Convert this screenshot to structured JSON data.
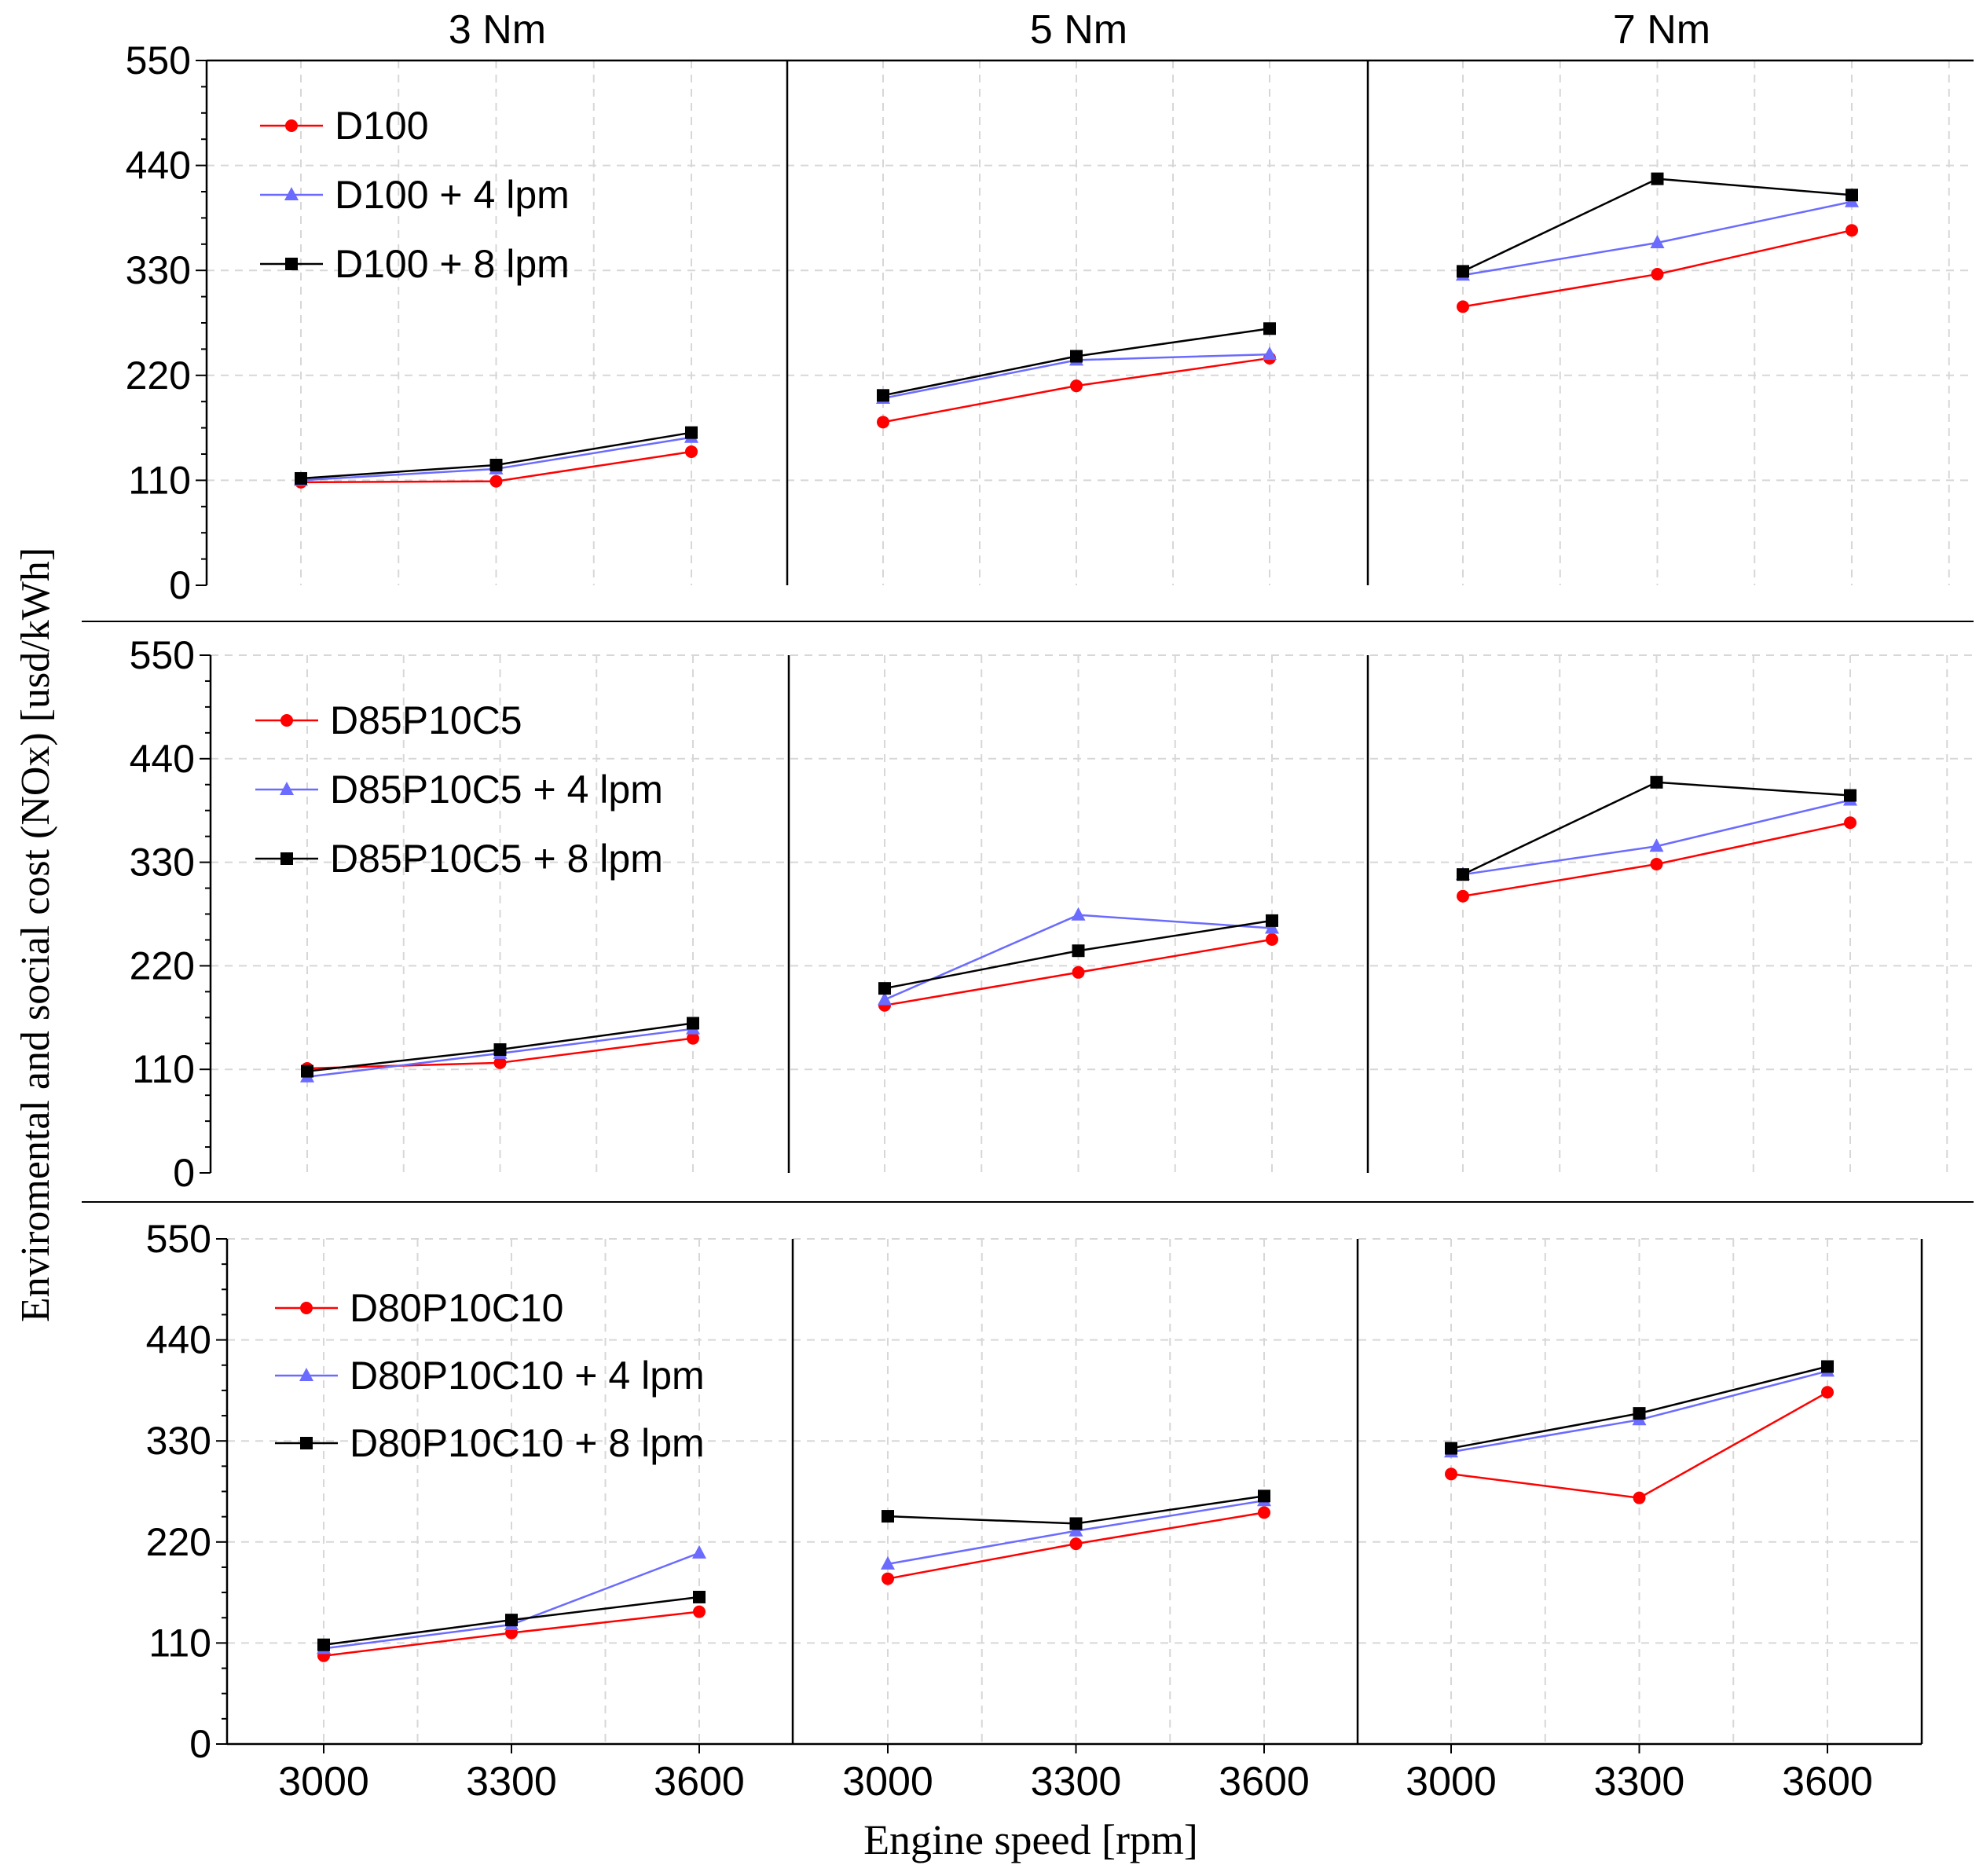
{
  "chart_data": {
    "type": "line",
    "ylabel": "Enviromental and social cost (NOx) [usd/kWh]",
    "xlabel": "Engine speed [rpm]",
    "column_titles": [
      "3 Nm",
      "5 Nm",
      "7 Nm"
    ],
    "x_ticks": [
      "3000",
      "3300",
      "3600"
    ],
    "y_ticks": [
      "0",
      "110",
      "220",
      "330",
      "440",
      "550"
    ],
    "ylim": [
      0,
      550
    ],
    "grid": true,
    "colors": {
      "base": "#ff0000",
      "lpm4": "#6b6bff",
      "lpm8": "#000000"
    },
    "rows": [
      {
        "legend": [
          "D100",
          "D100 + 4 lpm",
          "D100 + 8 lpm"
        ],
        "panels": [
          {
            "torque": "3 Nm",
            "series": [
              {
                "name": "D100",
                "x": [
                  3000,
                  3300,
                  3600
                ],
                "values": [
                  108,
                  109,
                  140
                ]
              },
              {
                "name": "D100 + 4 lpm",
                "x": [
                  3000,
                  3300,
                  3600
                ],
                "values": [
                  110,
                  122,
                  155
                ]
              },
              {
                "name": "D100 + 8 lpm",
                "x": [
                  3000,
                  3300,
                  3600
                ],
                "values": [
                  112,
                  126,
                  160
                ]
              }
            ]
          },
          {
            "torque": "5 Nm",
            "series": [
              {
                "name": "D100",
                "x": [
                  3000,
                  3300,
                  3600
                ],
                "values": [
                  171,
                  209,
                  238
                ]
              },
              {
                "name": "D100 + 4 lpm",
                "x": [
                  3000,
                  3300,
                  3600
                ],
                "values": [
                  196,
                  236,
                  242
                ]
              },
              {
                "name": "D100 + 8 lpm",
                "x": [
                  3000,
                  3300,
                  3600
                ],
                "values": [
                  199,
                  240,
                  269
                ]
              }
            ]
          },
          {
            "torque": "7 Nm",
            "series": [
              {
                "name": "D100",
                "x": [
                  3000,
                  3300,
                  3600
                ],
                "values": [
                  292,
                  326,
                  372
                ]
              },
              {
                "name": "D100 + 4 lpm",
                "x": [
                  3000,
                  3300,
                  3600
                ],
                "values": [
                  325,
                  359,
                  402
                ]
              },
              {
                "name": "D100 + 8 lpm",
                "x": [
                  3000,
                  3300,
                  3600
                ],
                "values": [
                  329,
                  426,
                  409
                ]
              }
            ]
          }
        ]
      },
      {
        "legend": [
          "D85P10C5",
          "D85P10C5 + 4 lpm",
          "D85P10C5 + 8 lpm"
        ],
        "panels": [
          {
            "torque": "3 Nm",
            "series": [
              {
                "name": "D85P10C5",
                "x": [
                  3000,
                  3300,
                  3600
                ],
                "values": [
                  111,
                  117,
                  143
                ]
              },
              {
                "name": "D85P10C5 + 4 lpm",
                "x": [
                  3000,
                  3300,
                  3600
                ],
                "values": [
                  102,
                  127,
                  153
                ]
              },
              {
                "name": "D85P10C5 + 8 lpm",
                "x": [
                  3000,
                  3300,
                  3600
                ],
                "values": [
                  108,
                  131,
                  159
                ]
              }
            ]
          },
          {
            "torque": "5 Nm",
            "series": [
              {
                "name": "D85P10C5",
                "x": [
                  3000,
                  3300,
                  3600
                ],
                "values": [
                  178,
                  213,
                  248
                ]
              },
              {
                "name": "D85P10C5 + 4 lpm",
                "x": [
                  3000,
                  3300,
                  3600
                ],
                "values": [
                  184,
                  274,
                  260
                ]
              },
              {
                "name": "D85P10C5 + 8 lpm",
                "x": [
                  3000,
                  3300,
                  3600
                ],
                "values": [
                  196,
                  236,
                  268
                ]
              }
            ]
          },
          {
            "torque": "7 Nm",
            "series": [
              {
                "name": "D85P10C5",
                "x": [
                  3000,
                  3300,
                  3600
                ],
                "values": [
                  294,
                  328,
                  372
                ]
              },
              {
                "name": "D85P10C5 + 4 lpm",
                "x": [
                  3000,
                  3300,
                  3600
                ],
                "values": [
                  317,
                  347,
                  396
                ]
              },
              {
                "name": "D85P10C5 + 8 lpm",
                "x": [
                  3000,
                  3300,
                  3600
                ],
                "values": [
                  317,
                  415,
                  401
                ]
              }
            ]
          }
        ]
      },
      {
        "legend": [
          "D80P10C10",
          "D80P10C10 + 4 lpm",
          "D80P10C10 + 8 lpm"
        ],
        "panels": [
          {
            "torque": "3 Nm",
            "series": [
              {
                "name": "D80P10C10",
                "x": [
                  3000,
                  3300,
                  3600
                ],
                "values": [
                  96,
                  121,
                  144
                ]
              },
              {
                "name": "D80P10C10 + 4 lpm",
                "x": [
                  3000,
                  3300,
                  3600
                ],
                "values": [
                  104,
                  130,
                  208
                ]
              },
              {
                "name": "D80P10C10 + 8 lpm",
                "x": [
                  3000,
                  3300,
                  3600
                ],
                "values": [
                  108,
                  135,
                  160
                ]
              }
            ]
          },
          {
            "torque": "5 Nm",
            "series": [
              {
                "name": "D80P10C10",
                "x": [
                  3000,
                  3300,
                  3600
                ],
                "values": [
                  180,
                  218,
                  252
                ]
              },
              {
                "name": "D80P10C10 + 4 lpm",
                "x": [
                  3000,
                  3300,
                  3600
                ],
                "values": [
                  196,
                  232,
                  265
                ]
              },
              {
                "name": "D80P10C10 + 8 lpm",
                "x": [
                  3000,
                  3300,
                  3600
                ],
                "values": [
                  248,
                  240,
                  270
                ]
              }
            ]
          },
          {
            "torque": "7 Nm",
            "series": [
              {
                "name": "D80P10C10",
                "x": [
                  3000,
                  3300,
                  3600
                ],
                "values": [
                  294,
                  268,
                  383
                ]
              },
              {
                "name": "D80P10C10 + 4 lpm",
                "x": [
                  3000,
                  3300,
                  3600
                ],
                "values": [
                  318,
                  353,
                  406
                ]
              },
              {
                "name": "D80P10C10 + 8 lpm",
                "x": [
                  3000,
                  3300,
                  3600
                ],
                "values": [
                  322,
                  360,
                  411
                ]
              }
            ]
          }
        ]
      }
    ]
  }
}
